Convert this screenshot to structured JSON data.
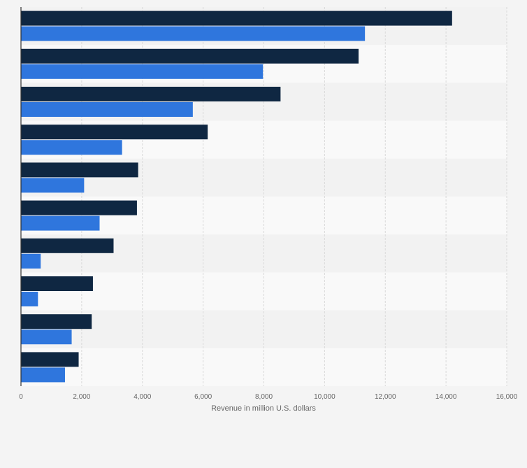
{
  "chart_data": {
    "type": "bar",
    "orientation": "horizontal",
    "title": "",
    "xlabel": "Revenue in million U.S. dollars",
    "ylabel": "",
    "xlim": [
      0,
      16000
    ],
    "xticks": [
      0,
      2000,
      4000,
      6000,
      8000,
      10000,
      12000,
      14000,
      16000
    ],
    "xtick_labels": [
      "0",
      "2,000",
      "4,000",
      "6,000",
      "8,000",
      "10,000",
      "12,000",
      "14,000",
      "16,000"
    ],
    "categories": [
      "",
      "",
      "",
      "",
      "",
      "",
      "",
      "",
      "",
      ""
    ],
    "series": [
      {
        "name": "",
        "color": "#0f2742",
        "values": [
          14200,
          11120,
          8550,
          6150,
          3860,
          3820,
          3050,
          2370,
          2330,
          1900
        ]
      },
      {
        "name": "",
        "color": "#2f76dd",
        "values": [
          11330,
          7970,
          5660,
          3330,
          2080,
          2590,
          650,
          560,
          1670,
          1450
        ]
      }
    ],
    "grid": true,
    "legend": "none"
  },
  "style": {
    "band_light": "#f9f9f9",
    "band_dark": "#f2f2f2",
    "grid_color": "#d9d9d9",
    "axis_color": "#333333"
  }
}
